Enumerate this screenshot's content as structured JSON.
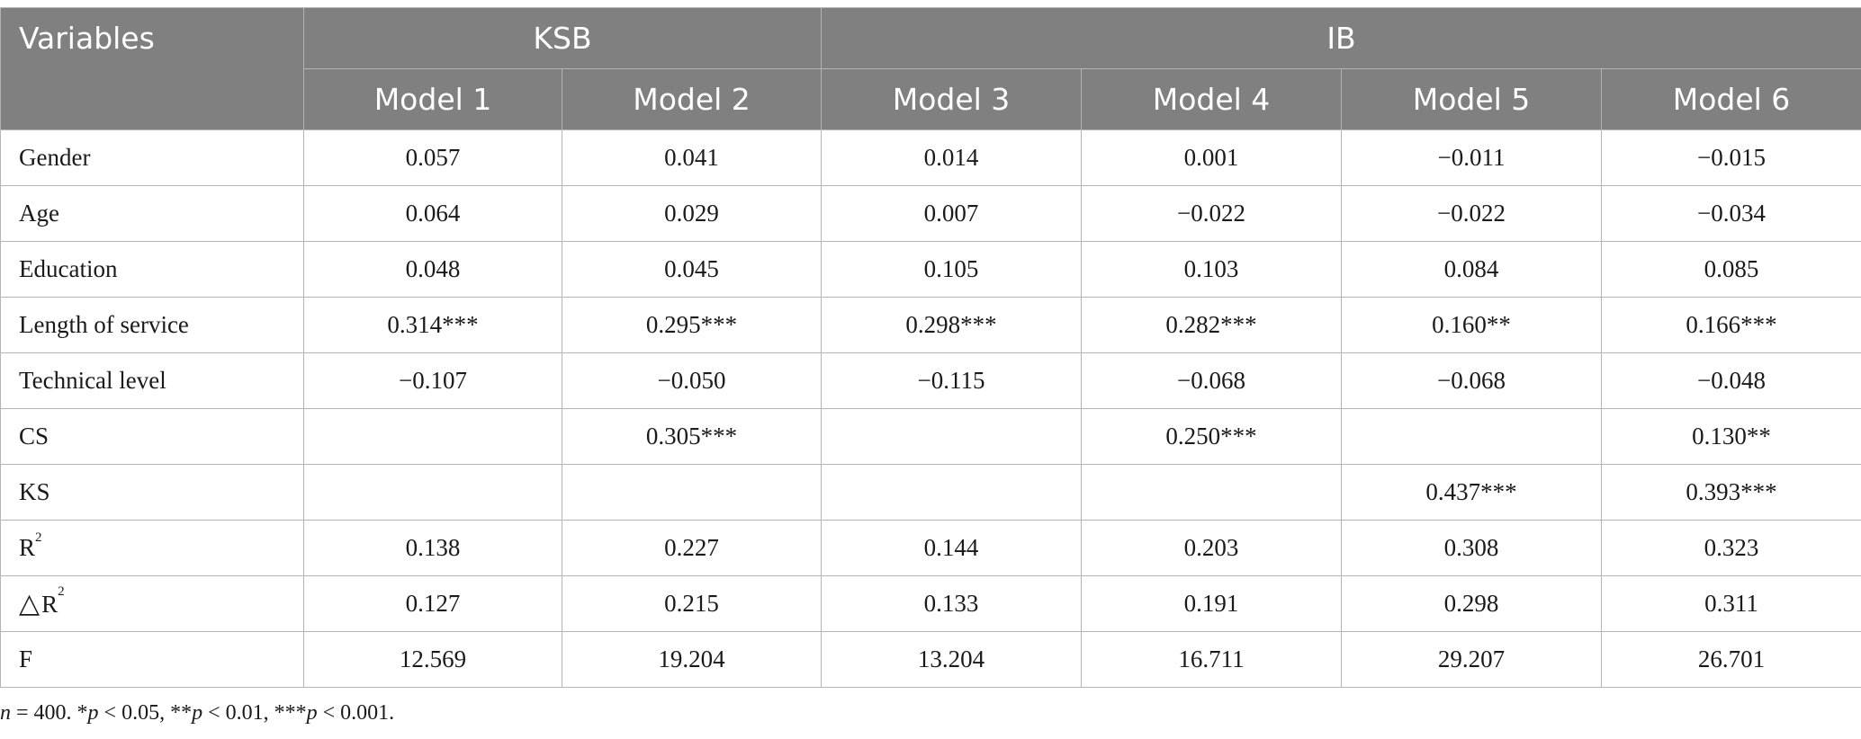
{
  "header": {
    "variables_label": "Variables",
    "groups": [
      "KSB",
      "IB"
    ],
    "models": [
      "Model 1",
      "Model 2",
      "Model 3",
      "Model 4",
      "Model 5",
      "Model 6"
    ]
  },
  "rows": [
    {
      "label": "Gender",
      "values": [
        "0.057",
        "0.041",
        "0.014",
        "0.001",
        "−0.011",
        "−0.015"
      ]
    },
    {
      "label": "Age",
      "values": [
        "0.064",
        "0.029",
        "0.007",
        "−0.022",
        "−0.022",
        "−0.034"
      ]
    },
    {
      "label": "Education",
      "values": [
        "0.048",
        "0.045",
        "0.105",
        "0.103",
        "0.084",
        "0.085"
      ]
    },
    {
      "label": "Length of service",
      "values": [
        "0.314***",
        "0.295***",
        "0.298***",
        "0.282***",
        "0.160**",
        "0.166***"
      ]
    },
    {
      "label": "Technical level",
      "values": [
        "−0.107",
        "−0.050",
        "−0.115",
        "−0.068",
        "−0.068",
        "−0.048"
      ]
    },
    {
      "label": "CS",
      "values": [
        "",
        "0.305***",
        "",
        "0.250***",
        "",
        "0.130**"
      ]
    },
    {
      "label": "KS",
      "values": [
        "",
        "",
        "",
        "",
        "0.437***",
        "0.393***"
      ]
    },
    {
      "label": "R",
      "label_sup": "2",
      "values": [
        "0.138",
        "0.227",
        "0.144",
        "0.203",
        "0.308",
        "0.323"
      ]
    },
    {
      "label_prefix": "△",
      "label": "R",
      "label_sup": "2",
      "values": [
        "0.127",
        "0.215",
        "0.133",
        "0.191",
        "0.298",
        "0.311"
      ]
    },
    {
      "label": "F",
      "values": [
        "12.569",
        "19.204",
        "13.204",
        "16.711",
        "29.207",
        "26.701"
      ]
    }
  ],
  "note": {
    "n_symbol": "n",
    "n_text": " = 400. *",
    "p1": "p",
    "t1": " < 0.05, **",
    "p2": "p",
    "t2": " < 0.01, ***",
    "p3": "p",
    "t3": " < 0.001."
  }
}
